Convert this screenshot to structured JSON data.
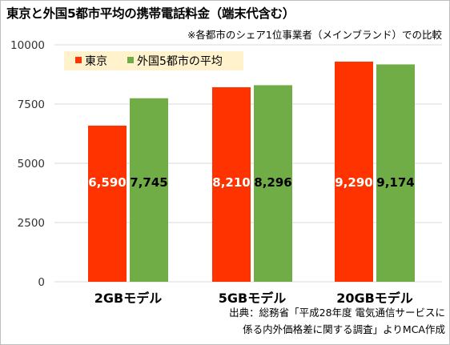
{
  "title": "東京と外国5都市平均の携帯電話料金（端末代含む）",
  "subtitle": "※各都市のシェア1位事業者（メインブランド）での比較",
  "source": [
    "出典：総務省「平成28年度 電気通信サービスに",
    "係る内外価格差に関する調査」よりMCA作成"
  ],
  "colors": {
    "tokyo": "#FF3300",
    "foreign": "#70AD47",
    "legend_bg": "#FFF2CC",
    "grid": "#d9d9d9"
  },
  "chart_data": {
    "type": "bar",
    "categories": [
      "2GBモデル",
      "5GBモデル",
      "20GBモデル"
    ],
    "series": [
      {
        "name": "東京",
        "values": [
          6590,
          8210,
          9290
        ],
        "labels": [
          "6,590",
          "8,210",
          "9,290"
        ]
      },
      {
        "name": "外国5都市の平均",
        "values": [
          7745,
          8296,
          9174
        ],
        "labels": [
          "7,745",
          "8,296",
          "9,174"
        ]
      }
    ],
    "yticks": [
      "0",
      "2500",
      "5000",
      "7500",
      "10000"
    ],
    "ylim": [
      0,
      10000
    ],
    "legend": "top-left",
    "grid": true
  }
}
